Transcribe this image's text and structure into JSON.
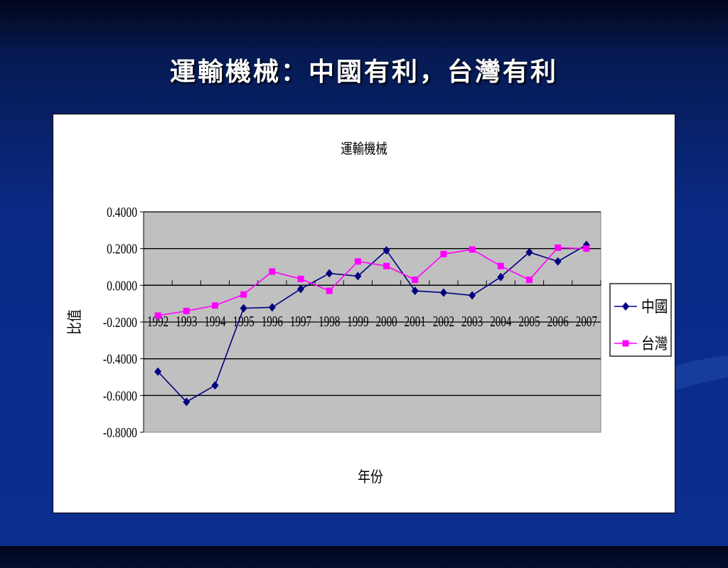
{
  "slide": {
    "title": "運輸機械：中國有利，台灣有利"
  },
  "chart_data": {
    "type": "line",
    "title": "運輸機械",
    "xlabel": "年份",
    "ylabel": "比值",
    "categories": [
      "1992",
      "1993",
      "1994",
      "1995",
      "1996",
      "1997",
      "1998",
      "1999",
      "2000",
      "2001",
      "2002",
      "2003",
      "2004",
      "2005",
      "2006",
      "2007"
    ],
    "ylim": [
      -0.8,
      0.4
    ],
    "yticks": [
      "0.4000",
      "0.2000",
      "0.0000",
      "-0.2000",
      "-0.4000",
      "-0.6000",
      "-0.8000"
    ],
    "grid": true,
    "legend": "right",
    "series": [
      {
        "name": "中國",
        "color": "#000080",
        "marker": "diamond",
        "values": [
          -0.47,
          -0.635,
          -0.545,
          -0.125,
          -0.12,
          -0.02,
          0.065,
          0.05,
          0.19,
          -0.03,
          -0.04,
          -0.055,
          0.045,
          0.18,
          0.13,
          0.22
        ]
      },
      {
        "name": "台灣",
        "color": "#ff00ff",
        "marker": "square",
        "values": [
          -0.165,
          -0.14,
          -0.11,
          -0.05,
          0.075,
          0.035,
          -0.03,
          0.13,
          0.105,
          0.03,
          0.17,
          0.195,
          0.105,
          0.03,
          0.205,
          0.2
        ]
      }
    ],
    "colors": {
      "plot_bg": "#c0c0c0",
      "grid": "#000000"
    }
  }
}
